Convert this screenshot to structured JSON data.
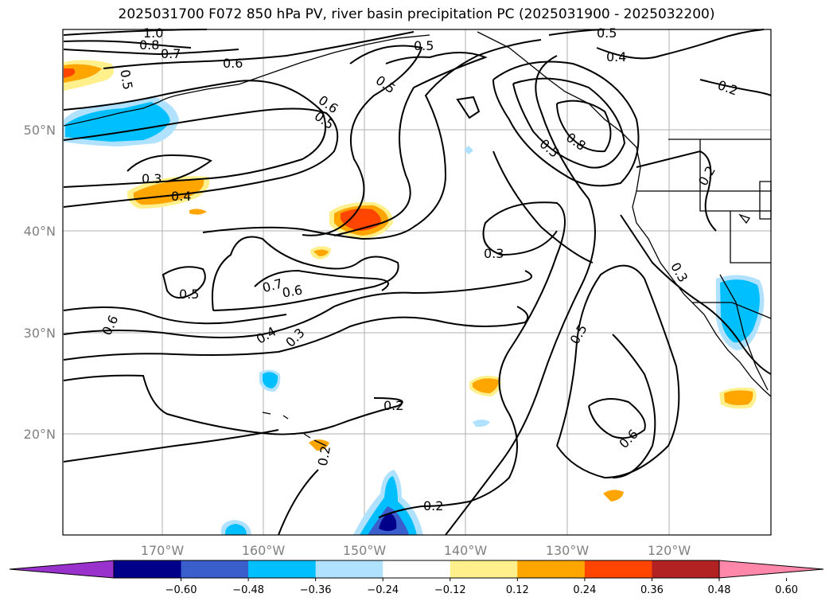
{
  "title": "2025031700 F072 850 hPa PV, river basin precipitation PC (2025031900 - 2025032200)",
  "lat_ticks": [
    "50°N",
    "40°N",
    "30°N",
    "20°N"
  ],
  "lon_ticks": [
    "170°W",
    "160°W",
    "150°W",
    "140°W",
    "130°W",
    "120°W"
  ],
  "map_extent": {
    "lon": [
      -180,
      -110
    ],
    "lat": [
      10,
      60
    ]
  },
  "contour_labels": [
    "1.0",
    "0.8",
    "0.7",
    "0.5",
    "0.6",
    "0.5",
    "0.5",
    "0.6",
    "0.5",
    "0.3",
    "0.4",
    "0.5",
    "0.7",
    "0.6",
    "0.4",
    "0.3",
    "0.6",
    "0.2",
    "0.2",
    "0.2",
    "0.3",
    "0.5",
    "0.6",
    "0.5",
    "0.4",
    "0.5",
    "0.8",
    "0.2",
    "0.2",
    "0.3"
  ],
  "colorbar": {
    "ticks": [
      "−0.60",
      "−0.48",
      "−0.36",
      "−0.24",
      "−0.12",
      "0.12",
      "0.24",
      "0.36",
      "0.48",
      "0.60"
    ],
    "colors": [
      "#9932cc",
      "#00008b",
      "#3a5fcd",
      "#00bfff",
      "#b0e2ff",
      "#ffffff",
      "#fff08c",
      "#ffa500",
      "#ff4500",
      "#b22222",
      "#ff88aa"
    ]
  }
}
